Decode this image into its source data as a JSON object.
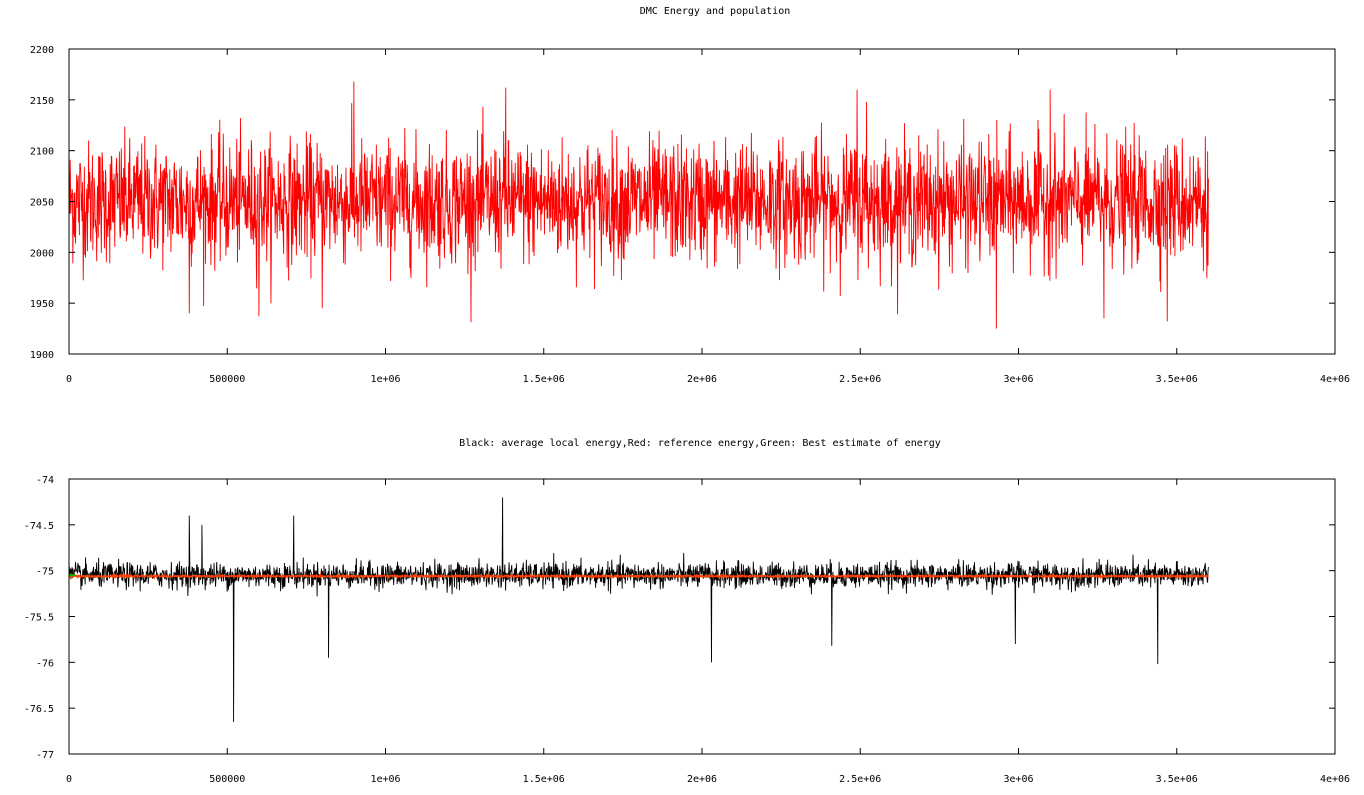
{
  "chart_data": [
    {
      "type": "line",
      "title": "DMC Energy and population",
      "xlabel": "",
      "ylabel": "",
      "xlim": [
        0,
        4000000
      ],
      "ylim": [
        1900,
        2200
      ],
      "x_ticks": [
        "0",
        "500000",
        "1e+06",
        "1.5e+06",
        "2e+06",
        "2.5e+06",
        "3e+06",
        "3.5e+06",
        "4e+06"
      ],
      "y_ticks": [
        "1900",
        "1950",
        "2000",
        "2050",
        "2100",
        "2150",
        "2200"
      ],
      "grid": false,
      "series": [
        {
          "color": "#ff0000",
          "x_range": [
            0,
            3600000
          ],
          "mean": 2050,
          "typical_min": 1985,
          "typical_max": 2115,
          "extremes": [
            {
              "x": 380000,
              "y": 1940
            },
            {
              "x": 600000,
              "y": 1937
            },
            {
              "x": 800000,
              "y": 1945
            },
            {
              "x": 900000,
              "y": 2168
            },
            {
              "x": 1380000,
              "y": 2162
            },
            {
              "x": 2490000,
              "y": 2160
            },
            {
              "x": 2520000,
              "y": 2148
            },
            {
              "x": 2930000,
              "y": 1925
            },
            {
              "x": 3100000,
              "y": 2160
            },
            {
              "x": 3270000,
              "y": 1935
            },
            {
              "x": 3470000,
              "y": 1932
            }
          ]
        }
      ]
    },
    {
      "type": "line",
      "title": "Black: average local energy,Red: reference energy,Green: Best estimate of energy",
      "xlabel": "",
      "ylabel": "",
      "xlim": [
        0,
        4000000
      ],
      "ylim": [
        -77,
        -74
      ],
      "x_ticks": [
        "0",
        "500000",
        "1e+06",
        "1.5e+06",
        "2e+06",
        "2.5e+06",
        "3e+06",
        "3.5e+06",
        "4e+06"
      ],
      "y_ticks": [
        "-77",
        "-76.5",
        "-76",
        "-75.5",
        "-75",
        "-74.5",
        "-74"
      ],
      "grid": false,
      "series": [
        {
          "color": "#000000",
          "x_range": [
            0,
            3600000
          ],
          "mean": -75.05,
          "typical_min": -75.2,
          "typical_max": -74.9,
          "extremes": [
            {
              "x": 520000,
              "y": -76.65
            },
            {
              "x": 1370000,
              "y": -74.2
            },
            {
              "x": 380000,
              "y": -74.4
            },
            {
              "x": 710000,
              "y": -74.4
            },
            {
              "x": 420000,
              "y": -74.5
            },
            {
              "x": 2030000,
              "y": -76.0
            },
            {
              "x": 3440000,
              "y": -76.02
            },
            {
              "x": 820000,
              "y": -75.95
            },
            {
              "x": 2410000,
              "y": -75.82
            },
            {
              "x": 2990000,
              "y": -75.8
            }
          ]
        },
        {
          "color": "#ff4000",
          "x_range": [
            0,
            3600000
          ],
          "mean": -75.06,
          "typical_min": -75.07,
          "typical_max": -75.05
        },
        {
          "color": "#00c000",
          "x_range": [
            0,
            20000
          ],
          "mean": -75.05,
          "typical_min": -75.06,
          "typical_max": -75.04
        }
      ]
    }
  ]
}
